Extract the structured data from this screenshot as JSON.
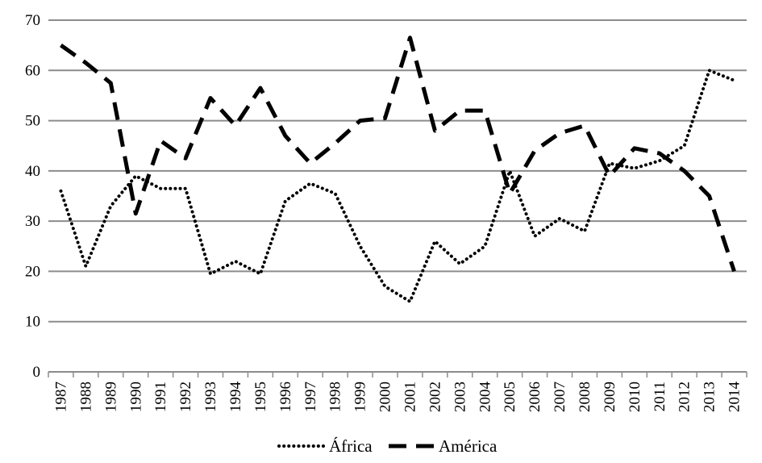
{
  "chart_data": {
    "type": "line",
    "title": "",
    "xlabel": "",
    "ylabel": "",
    "ylim": [
      0,
      70
    ],
    "yticks": [
      0,
      10,
      20,
      30,
      40,
      50,
      60,
      70
    ],
    "grid": "horizontal",
    "legend_position": "bottom-center",
    "categories": [
      "1987",
      "1988",
      "1989",
      "1990",
      "1991",
      "1992",
      "1993",
      "1994",
      "1995",
      "1996",
      "1997",
      "1998",
      "1999",
      "2000",
      "2001",
      "2002",
      "2003",
      "2004",
      "2005",
      "2006",
      "2007",
      "2008",
      "2009",
      "2010",
      "2011",
      "2012",
      "2013",
      "2014"
    ],
    "series": [
      {
        "name": "África",
        "style": "dotted",
        "color": "#000000",
        "values": [
          36,
          21,
          33,
          39,
          36.5,
          36.5,
          19.5,
          22,
          19.5,
          34,
          37.5,
          35.5,
          25,
          17,
          14,
          26,
          21.5,
          25,
          40,
          27,
          30.5,
          28,
          41.5,
          40.5,
          42,
          45,
          60,
          58
        ]
      },
      {
        "name": "América",
        "style": "dashed",
        "color": "#000000",
        "values": [
          65,
          61.5,
          57.5,
          31.5,
          46,
          42.5,
          54.5,
          49,
          56.5,
          47,
          41.5,
          45.5,
          50,
          50.5,
          66.5,
          48,
          52,
          52,
          35.5,
          44,
          47.5,
          49,
          39,
          44.5,
          43.5,
          40,
          35,
          20
        ]
      }
    ]
  }
}
